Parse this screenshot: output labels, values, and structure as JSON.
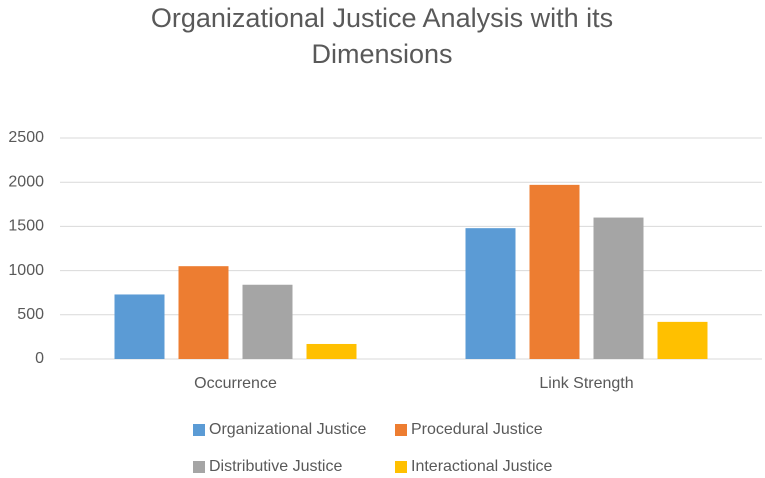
{
  "chart_data": {
    "type": "bar",
    "title": "Organizational Justice Analysis with its Dimensions",
    "categories": [
      "Occurrence",
      "Link Strength"
    ],
    "series": [
      {
        "name": "Organizational Justice",
        "color": "#5b9bd5",
        "values": [
          730,
          1480
        ]
      },
      {
        "name": "Procedural Justice",
        "color": "#ed7d31",
        "values": [
          1050,
          1970
        ]
      },
      {
        "name": "Distributive Justice",
        "color": "#a5a5a5",
        "values": [
          840,
          1600
        ]
      },
      {
        "name": "Interactional Justice",
        "color": "#ffc000",
        "values": [
          170,
          420
        ]
      }
    ],
    "ylim": [
      0,
      2500
    ],
    "yticks": [
      0,
      500,
      1000,
      1500,
      2000,
      2500
    ],
    "grid": true,
    "legend": "bottom"
  }
}
